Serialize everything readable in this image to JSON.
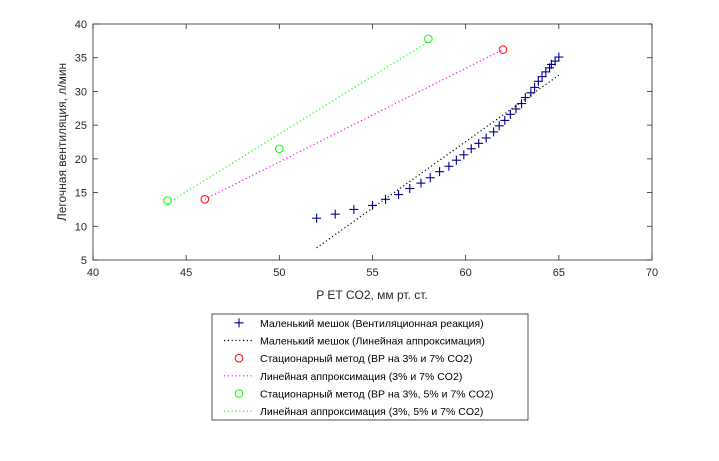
{
  "chart_data": {
    "type": "scatter",
    "xlabel": "P ET CO2, мм рт. ст.",
    "ylabel": "Легочная вентиляция, л/мин",
    "xlim": [
      40,
      70
    ],
    "ylim": [
      5,
      40
    ],
    "xticks": [
      40,
      45,
      50,
      55,
      60,
      65,
      70
    ],
    "yticks": [
      5,
      10,
      15,
      20,
      25,
      30,
      35,
      40
    ],
    "xtick_labels": [
      "40",
      "45",
      "50",
      "55",
      "60",
      "65",
      "70"
    ],
    "ytick_labels": [
      "5",
      "10",
      "15",
      "20",
      "25",
      "30",
      "35",
      "40"
    ],
    "grid": false,
    "box": true,
    "legend_position": "below",
    "series": [
      {
        "name": "Маленький мешок (Вентиляционная реакция)",
        "kind": "marker",
        "marker": "plus",
        "color": "#00008b",
        "x": [
          52.0,
          53.0,
          54.0,
          55.0,
          55.7,
          56.4,
          57.0,
          57.6,
          58.1,
          58.6,
          59.1,
          59.5,
          59.9,
          60.3,
          60.7,
          61.1,
          61.5,
          61.8,
          62.1,
          62.4,
          62.7,
          63.0,
          63.2,
          63.5,
          63.7,
          63.9,
          64.1,
          64.3,
          64.5,
          64.6,
          64.8,
          65.0
        ],
        "y": [
          11.2,
          11.8,
          12.5,
          13.1,
          14.0,
          14.7,
          15.6,
          16.4,
          17.2,
          18.1,
          18.9,
          19.8,
          20.6,
          21.5,
          22.3,
          23.1,
          24.0,
          24.9,
          25.7,
          26.6,
          27.4,
          28.2,
          29.1,
          29.8,
          30.6,
          31.5,
          32.2,
          32.9,
          33.5,
          34.0,
          34.5,
          35.1
        ]
      },
      {
        "name": "Маленький мешок (Линейная аппроксимация)",
        "kind": "line",
        "dash": "1.2 2.6",
        "color": "#000000",
        "x": [
          52.0,
          65.0
        ],
        "y": [
          6.8,
          32.4
        ]
      },
      {
        "name": "Стационарный метод (ВР на 3% и 7% CO2)",
        "kind": "marker",
        "marker": "circle",
        "color": "#ff0000",
        "x": [
          46.0,
          62.0
        ],
        "y": [
          14.0,
          36.2
        ]
      },
      {
        "name": "Линейная аппроксимация (3% и 7% CO2)",
        "kind": "line",
        "dash": "1.2 2.6",
        "color": "#ff00ff",
        "x": [
          46.0,
          62.0
        ],
        "y": [
          14.0,
          36.2
        ]
      },
      {
        "name": "Стационарный метод (ВР на 3%, 5% и 7% CO2)",
        "kind": "marker",
        "marker": "circle",
        "color": "#00ff00",
        "x": [
          44.0,
          50.0,
          58.0
        ],
        "y": [
          13.8,
          21.5,
          37.8
        ]
      },
      {
        "name": "Линейная аппроксимация (3%, 5% и 7% CO2)",
        "kind": "line",
        "dash": "1.2 2.6",
        "color": "#00ff00",
        "x": [
          44.0,
          58.0
        ],
        "y": [
          13.4,
          37.4
        ]
      }
    ]
  }
}
